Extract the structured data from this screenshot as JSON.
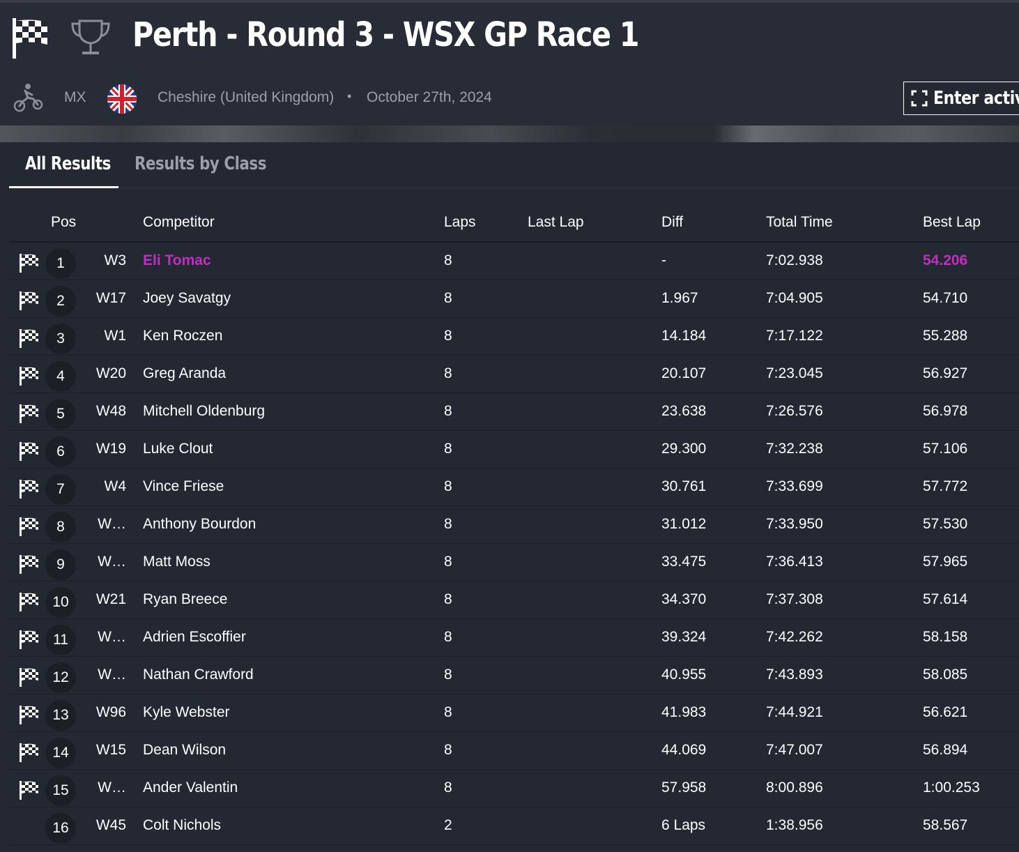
{
  "header": {
    "title": "Perth - Round 3 - WSX GP Race 1",
    "sport": "MX",
    "location": "Cheshire (United Kingdom)",
    "separator": "•",
    "date": "October 27th, 2024",
    "enter_button": "Enter active"
  },
  "tabs": [
    {
      "label": "All Results",
      "active": true
    },
    {
      "label": "Results by Class",
      "active": false
    }
  ],
  "columns": {
    "pos": "Pos",
    "competitor": "Competitor",
    "laps": "Laps",
    "last_lap": "Last Lap",
    "diff": "Diff",
    "total_time": "Total Time",
    "best_lap": "Best Lap"
  },
  "colors": {
    "highlight": "#c02fbf",
    "background": "#232832"
  },
  "rows": [
    {
      "pos": "1",
      "number": "W3",
      "name": "Eli Tomac",
      "laps": "8",
      "last_lap": "",
      "diff": "-",
      "total": "7:02.938",
      "best": "54.206",
      "finished": true
    },
    {
      "pos": "2",
      "number": "W17",
      "name": "Joey Savatgy",
      "laps": "8",
      "last_lap": "",
      "diff": "1.967",
      "total": "7:04.905",
      "best": "54.710",
      "finished": true
    },
    {
      "pos": "3",
      "number": "W1",
      "name": "Ken Roczen",
      "laps": "8",
      "last_lap": "",
      "diff": "14.184",
      "total": "7:17.122",
      "best": "55.288",
      "finished": true
    },
    {
      "pos": "4",
      "number": "W20",
      "name": "Greg Aranda",
      "laps": "8",
      "last_lap": "",
      "diff": "20.107",
      "total": "7:23.045",
      "best": "56.927",
      "finished": true
    },
    {
      "pos": "5",
      "number": "W48",
      "name": "Mitchell Oldenburg",
      "laps": "8",
      "last_lap": "",
      "diff": "23.638",
      "total": "7:26.576",
      "best": "56.978",
      "finished": true
    },
    {
      "pos": "6",
      "number": "W19",
      "name": "Luke Clout",
      "laps": "8",
      "last_lap": "",
      "diff": "29.300",
      "total": "7:32.238",
      "best": "57.106",
      "finished": true
    },
    {
      "pos": "7",
      "number": "W4",
      "name": "Vince Friese",
      "laps": "8",
      "last_lap": "",
      "diff": "30.761",
      "total": "7:33.699",
      "best": "57.772",
      "finished": true
    },
    {
      "pos": "8",
      "number": "W…",
      "name": "Anthony Bourdon",
      "laps": "8",
      "last_lap": "",
      "diff": "31.012",
      "total": "7:33.950",
      "best": "57.530",
      "finished": true
    },
    {
      "pos": "9",
      "number": "W…",
      "name": "Matt Moss",
      "laps": "8",
      "last_lap": "",
      "diff": "33.475",
      "total": "7:36.413",
      "best": "57.965",
      "finished": true
    },
    {
      "pos": "10",
      "number": "W21",
      "name": "Ryan Breece",
      "laps": "8",
      "last_lap": "",
      "diff": "34.370",
      "total": "7:37.308",
      "best": "57.614",
      "finished": true
    },
    {
      "pos": "11",
      "number": "W…",
      "name": "Adrien Escoffier",
      "laps": "8",
      "last_lap": "",
      "diff": "39.324",
      "total": "7:42.262",
      "best": "58.158",
      "finished": true
    },
    {
      "pos": "12",
      "number": "W…",
      "name": "Nathan Crawford",
      "laps": "8",
      "last_lap": "",
      "diff": "40.955",
      "total": "7:43.893",
      "best": "58.085",
      "finished": true
    },
    {
      "pos": "13",
      "number": "W96",
      "name": "Kyle Webster",
      "laps": "8",
      "last_lap": "",
      "diff": "41.983",
      "total": "7:44.921",
      "best": "56.621",
      "finished": true
    },
    {
      "pos": "14",
      "number": "W15",
      "name": "Dean Wilson",
      "laps": "8",
      "last_lap": "",
      "diff": "44.069",
      "total": "7:47.007",
      "best": "56.894",
      "finished": true
    },
    {
      "pos": "15",
      "number": "W…",
      "name": "Ander Valentin",
      "laps": "8",
      "last_lap": "",
      "diff": "57.958",
      "total": "8:00.896",
      "best": "1:00.253",
      "finished": true
    },
    {
      "pos": "16",
      "number": "W45",
      "name": "Colt Nichols",
      "laps": "2",
      "last_lap": "",
      "diff": "6 Laps",
      "total": "1:38.956",
      "best": "58.567",
      "finished": false
    }
  ]
}
